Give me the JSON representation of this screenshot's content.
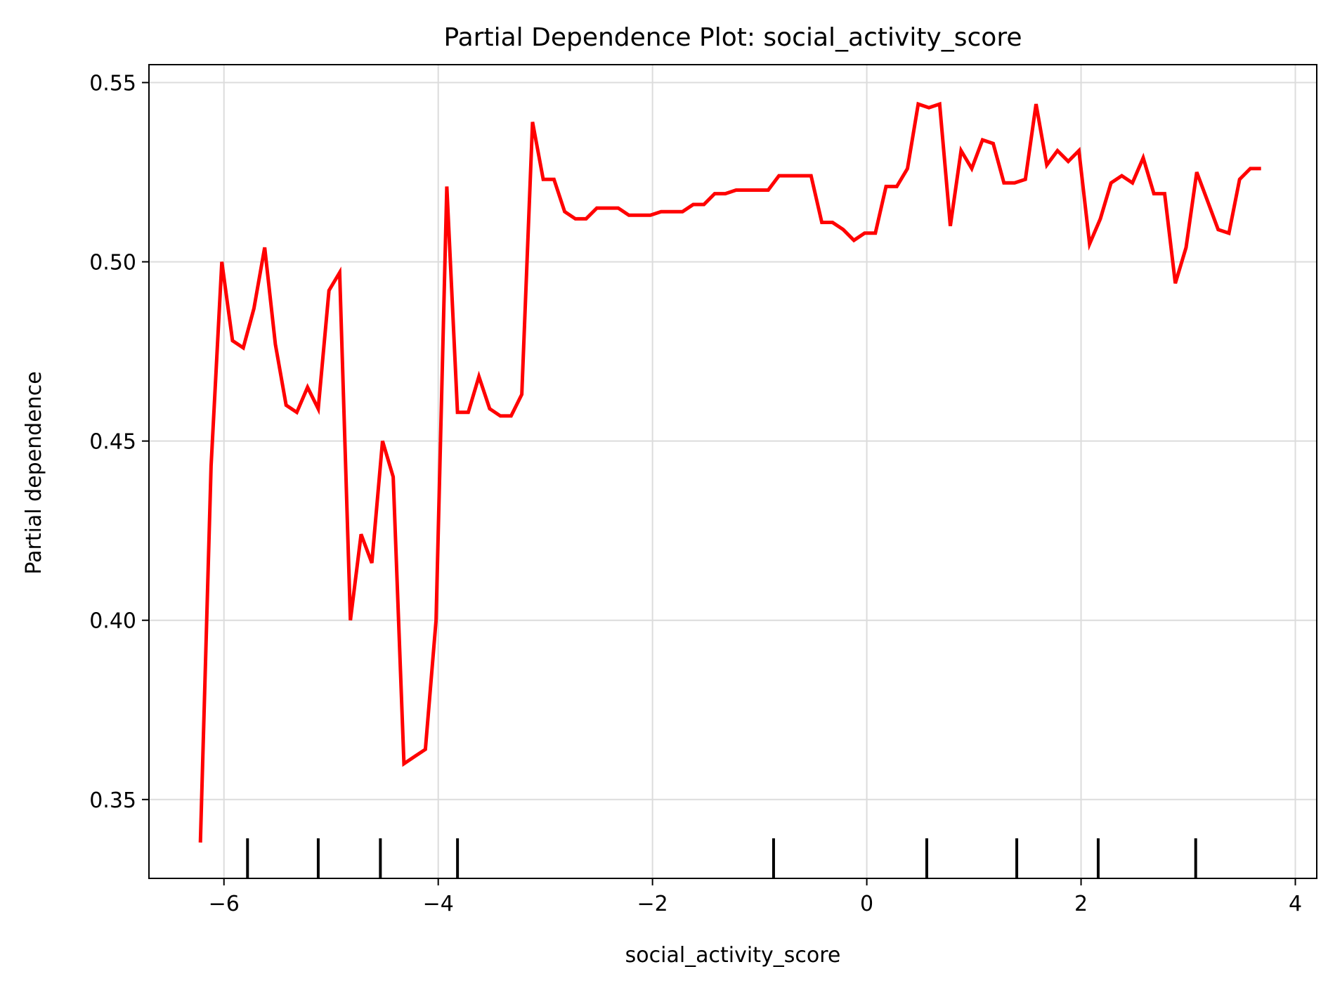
{
  "chart_data": {
    "type": "line",
    "title": "Partial Dependence Plot: social_activity_score",
    "xlabel": "social_activity_score",
    "ylabel": "Partial dependence",
    "xlim": [
      -6.7,
      4.2
    ],
    "ylim": [
      0.328,
      0.555
    ],
    "x_ticks": [
      -6,
      -4,
      -2,
      0,
      2,
      4
    ],
    "x_tick_labels": [
      "−6",
      "−4",
      "−2",
      "0",
      "2",
      "4"
    ],
    "y_ticks": [
      0.35,
      0.4,
      0.45,
      0.5,
      0.55
    ],
    "y_tick_labels": [
      "0.35",
      "0.40",
      "0.45",
      "0.50",
      "0.55"
    ],
    "grid": true,
    "line_color": "#ff0000",
    "rug_color": "#000000",
    "series": [
      {
        "x": [
          -6.22,
          -6.12,
          -6.02,
          -5.92,
          -5.82,
          -5.72,
          -5.62,
          -5.52,
          -5.42,
          -5.32,
          -5.22,
          -5.12,
          -5.02,
          -4.92,
          -4.82,
          -4.72,
          -4.62,
          -4.52,
          -4.42,
          -4.32,
          -4.22,
          -4.12,
          -4.02,
          -3.92,
          -3.82,
          -3.72,
          -3.62,
          -3.52,
          -3.42,
          -3.32,
          -3.22,
          -3.12,
          -3.02,
          -2.92,
          -2.82,
          -2.72,
          -2.62,
          -2.52,
          -2.42,
          -2.32,
          -2.22,
          -2.12,
          -2.02,
          -1.92,
          -1.82,
          -1.72,
          -1.62,
          -1.52,
          -1.42,
          -1.32,
          -1.22,
          -1.12,
          -1.02,
          -0.92,
          -0.82,
          -0.72,
          -0.62,
          -0.52,
          -0.42,
          -0.32,
          -0.22,
          -0.12,
          -0.02,
          0.08,
          0.18,
          0.28,
          0.38,
          0.48,
          0.58,
          0.68,
          0.78,
          0.88,
          0.98,
          1.08,
          1.18,
          1.28,
          1.38,
          1.48,
          1.58,
          1.68,
          1.78,
          1.88,
          1.98,
          2.08,
          2.18,
          2.28,
          2.38,
          2.48,
          2.58,
          2.68,
          2.78,
          2.88,
          2.98,
          3.08,
          3.18,
          3.28,
          3.38,
          3.48,
          3.58,
          3.68
        ],
        "y": [
          0.338,
          0.443,
          0.5,
          0.478,
          0.476,
          0.487,
          0.504,
          0.477,
          0.46,
          0.458,
          0.465,
          0.459,
          0.492,
          0.497,
          0.4,
          0.424,
          0.416,
          0.45,
          0.44,
          0.36,
          0.362,
          0.364,
          0.4,
          0.521,
          0.458,
          0.458,
          0.468,
          0.459,
          0.457,
          0.457,
          0.463,
          0.539,
          0.523,
          0.523,
          0.514,
          0.512,
          0.512,
          0.515,
          0.515,
          0.515,
          0.513,
          0.513,
          0.513,
          0.514,
          0.514,
          0.514,
          0.516,
          0.516,
          0.519,
          0.519,
          0.52,
          0.52,
          0.52,
          0.52,
          0.524,
          0.524,
          0.524,
          0.524,
          0.511,
          0.511,
          0.509,
          0.506,
          0.508,
          0.508,
          0.521,
          0.521,
          0.526,
          0.544,
          0.543,
          0.544,
          0.51,
          0.531,
          0.526,
          0.534,
          0.533,
          0.522,
          0.522,
          0.523,
          0.544,
          0.527,
          0.531,
          0.528,
          0.531,
          0.505,
          0.512,
          0.522,
          0.524,
          0.522,
          0.529,
          0.519,
          0.519,
          0.494,
          0.504,
          0.525,
          0.517,
          0.509,
          0.508,
          0.523,
          0.526,
          0.526
        ]
      }
    ],
    "rug_x": [
      -5.78,
      -5.12,
      -4.54,
      -3.82,
      -0.87,
      0.56,
      1.4,
      2.16,
      3.07
    ]
  }
}
